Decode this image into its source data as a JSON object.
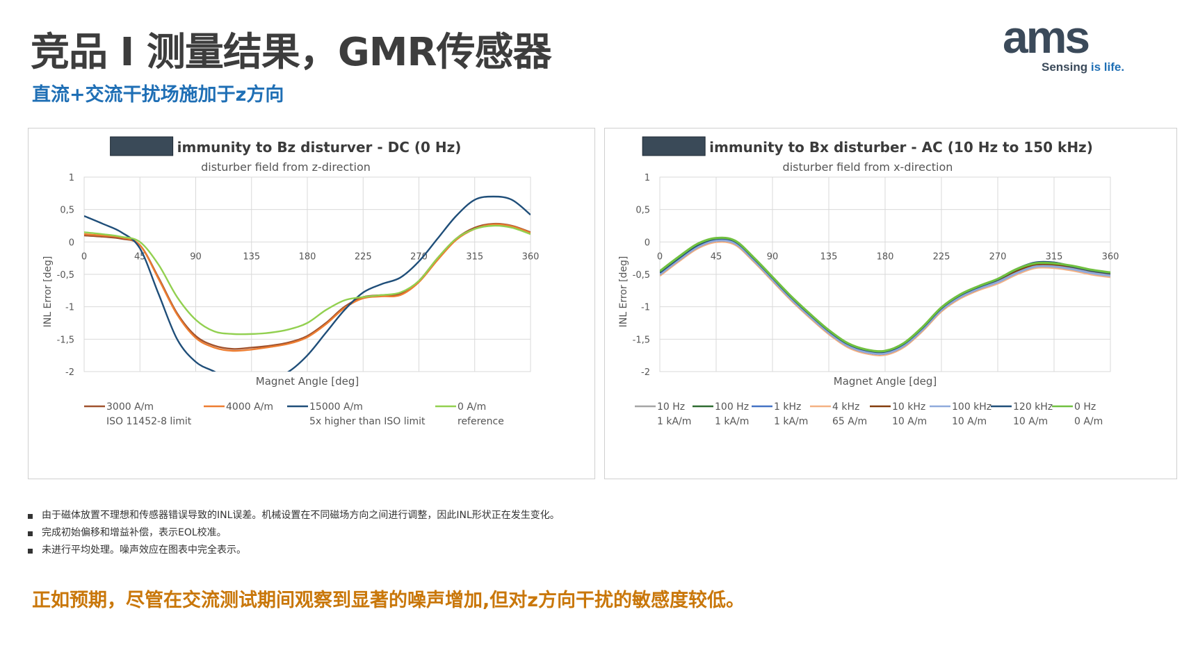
{
  "header": {
    "title": "竞品 I 测量结果，GMR传感器",
    "subtitle": "直流+交流干扰场施加于z方向"
  },
  "logo": {
    "wordmark": "ams",
    "tagline_1": "Sensing ",
    "tagline_2": "is life.",
    "color": "#3b4a5a",
    "accent": "#1f6fb5"
  },
  "bullets": [
    "由于磁体放置不理想和传感器错误导致的INL误差。机械设置在不同磁场方向之间进行调整，因此INL形状正在发生变化。",
    "完成初始偏移和增益补偿，表示EOL校准。",
    "未进行平均处理。噪声效应在图表中完全表示。"
  ],
  "conclusion": "正如预期，尽管在交流测试期间观察到显著的噪声增加,但对z方向干扰的敏感度较低。",
  "chart_data": [
    {
      "type": "line",
      "title": "immunity to Bz disturver - DC (0 Hz)",
      "subtitle": "disturber field from z-direction",
      "xlabel": "Magnet Angle [deg]",
      "ylabel": "INL Error [deg]",
      "xlim": [
        0,
        360
      ],
      "ylim": [
        -2,
        1
      ],
      "xticks": [
        "0",
        "45",
        "90",
        "135",
        "180",
        "225",
        "270",
        "315",
        "360"
      ],
      "yticks": [
        "1",
        "0,5",
        "0",
        "-0,5",
        "-1",
        "-1,5",
        "-2"
      ],
      "grid": true,
      "legend_position": "bottom",
      "x": [
        0,
        15,
        30,
        45,
        60,
        75,
        90,
        105,
        120,
        135,
        150,
        165,
        180,
        195,
        210,
        225,
        240,
        255,
        270,
        285,
        300,
        315,
        330,
        345,
        360
      ],
      "series": [
        {
          "name": "3000 A/m",
          "note": "ISO 11452-8 limit",
          "color": "#a0522d",
          "values": [
            0.1,
            0.08,
            0.05,
            -0.05,
            -0.55,
            -1.1,
            -1.45,
            -1.6,
            -1.65,
            -1.63,
            -1.6,
            -1.55,
            -1.45,
            -1.25,
            -1.0,
            -0.85,
            -0.82,
            -0.8,
            -0.6,
            -0.25,
            0.05,
            0.22,
            0.28,
            0.25,
            0.15
          ]
        },
        {
          "name": "4000 A/m",
          "note": "",
          "color": "#ed7d31",
          "values": [
            0.12,
            0.1,
            0.07,
            -0.05,
            -0.57,
            -1.12,
            -1.48,
            -1.63,
            -1.68,
            -1.66,
            -1.62,
            -1.57,
            -1.47,
            -1.27,
            -1.02,
            -0.87,
            -0.84,
            -0.82,
            -0.62,
            -0.28,
            0.03,
            0.2,
            0.27,
            0.24,
            0.14
          ]
        },
        {
          "name": "15000 A/m",
          "note": "5x higher than ISO limit",
          "color": "#1f4e79",
          "values": [
            0.4,
            0.28,
            0.15,
            -0.1,
            -0.8,
            -1.5,
            -1.85,
            -2.0,
            -2.15,
            -2.18,
            -2.12,
            -2.0,
            -1.75,
            -1.4,
            -1.05,
            -0.78,
            -0.65,
            -0.55,
            -0.3,
            0.05,
            0.4,
            0.65,
            0.7,
            0.65,
            0.42
          ]
        },
        {
          "name": "0 A/m",
          "note": "reference",
          "color": "#92d050",
          "values": [
            0.15,
            0.12,
            0.08,
            0.0,
            -0.35,
            -0.85,
            -1.2,
            -1.38,
            -1.42,
            -1.42,
            -1.4,
            -1.35,
            -1.25,
            -1.05,
            -0.9,
            -0.85,
            -0.82,
            -0.78,
            -0.6,
            -0.25,
            0.05,
            0.2,
            0.25,
            0.22,
            0.12
          ]
        }
      ]
    },
    {
      "type": "line",
      "title": "immunity to Bx disturber - AC (10 Hz to 150 kHz)",
      "subtitle": "disturber field from x-direction",
      "xlabel": "Magnet Angle [deg]",
      "ylabel": "INL Error [deg]",
      "xlim": [
        0,
        360
      ],
      "ylim": [
        -2,
        1
      ],
      "xticks": [
        "0",
        "45",
        "90",
        "135",
        "180",
        "225",
        "270",
        "315",
        "360"
      ],
      "yticks": [
        "1",
        "0,5",
        "0",
        "-0,5",
        "-1",
        "-1,5",
        "-2"
      ],
      "grid": true,
      "legend_position": "bottom",
      "x": [
        0,
        15,
        30,
        45,
        60,
        75,
        90,
        105,
        120,
        135,
        150,
        165,
        180,
        195,
        210,
        225,
        240,
        255,
        270,
        285,
        300,
        315,
        330,
        345,
        360
      ],
      "series": [
        {
          "name": "10 Hz",
          "note": "1 kA/m",
          "color": "#a5a5a5",
          "values": [
            -0.5,
            -0.28,
            -0.08,
            0.02,
            -0.02,
            -0.28,
            -0.58,
            -0.88,
            -1.15,
            -1.4,
            -1.6,
            -1.7,
            -1.72,
            -1.6,
            -1.35,
            -1.05,
            -0.85,
            -0.72,
            -0.62,
            -0.48,
            -0.38,
            -0.38,
            -0.42,
            -0.48,
            -0.52
          ]
        },
        {
          "name": "100 Hz",
          "note": "1 kA/m",
          "color": "#2e6b30",
          "values": [
            -0.49,
            -0.27,
            -0.07,
            0.03,
            -0.01,
            -0.27,
            -0.57,
            -0.87,
            -1.14,
            -1.39,
            -1.59,
            -1.69,
            -1.71,
            -1.59,
            -1.34,
            -1.04,
            -0.84,
            -0.71,
            -0.6,
            -0.45,
            -0.35,
            -0.35,
            -0.4,
            -0.46,
            -0.5
          ]
        },
        {
          "name": "1 kHz",
          "note": "1 kA/m",
          "color": "#4472c4",
          "values": [
            -0.51,
            -0.29,
            -0.09,
            0.01,
            -0.03,
            -0.29,
            -0.59,
            -0.89,
            -1.16,
            -1.41,
            -1.61,
            -1.71,
            -1.73,
            -1.61,
            -1.36,
            -1.06,
            -0.86,
            -0.73,
            -0.63,
            -0.49,
            -0.39,
            -0.39,
            -0.43,
            -0.49,
            -0.53
          ]
        },
        {
          "name": "4 kHz",
          "note": "65 A/m",
          "color": "#f4b183",
          "values": [
            -0.52,
            -0.3,
            -0.1,
            0.0,
            -0.04,
            -0.3,
            -0.6,
            -0.9,
            -1.17,
            -1.42,
            -1.62,
            -1.72,
            -1.74,
            -1.62,
            -1.37,
            -1.07,
            -0.87,
            -0.74,
            -0.64,
            -0.5,
            -0.4,
            -0.4,
            -0.44,
            -0.5,
            -0.54
          ]
        },
        {
          "name": "10 kHz",
          "note": "10 A/m",
          "color": "#843c0c",
          "values": [
            -0.5,
            -0.28,
            -0.08,
            0.02,
            -0.02,
            -0.28,
            -0.58,
            -0.88,
            -1.15,
            -1.4,
            -1.6,
            -1.7,
            -1.72,
            -1.6,
            -1.35,
            -1.05,
            -0.85,
            -0.72,
            -0.61,
            -0.46,
            -0.36,
            -0.36,
            -0.41,
            -0.47,
            -0.51
          ]
        },
        {
          "name": "100 kHz",
          "note": "10 A/m",
          "color": "#8faadc",
          "values": [
            -0.5,
            -0.28,
            -0.08,
            0.02,
            -0.02,
            -0.28,
            -0.58,
            -0.88,
            -1.15,
            -1.4,
            -1.6,
            -1.7,
            -1.72,
            -1.6,
            -1.35,
            -1.05,
            -0.85,
            -0.72,
            -0.62,
            -0.48,
            -0.38,
            -0.38,
            -0.42,
            -0.48,
            -0.52
          ]
        },
        {
          "name": "120 kHz",
          "note": "10 A/m",
          "color": "#1f4e79",
          "values": [
            -0.47,
            -0.25,
            -0.05,
            0.05,
            0.01,
            -0.25,
            -0.55,
            -0.85,
            -1.12,
            -1.37,
            -1.57,
            -1.67,
            -1.69,
            -1.57,
            -1.32,
            -1.02,
            -0.82,
            -0.69,
            -0.58,
            -0.42,
            -0.32,
            -0.32,
            -0.38,
            -0.44,
            -0.48
          ]
        },
        {
          "name": "0 Hz",
          "note": "0 A/m",
          "color": "#70c040",
          "values": [
            -0.45,
            -0.23,
            -0.03,
            0.06,
            0.02,
            -0.24,
            -0.54,
            -0.84,
            -1.11,
            -1.36,
            -1.56,
            -1.66,
            -1.68,
            -1.56,
            -1.31,
            -1.01,
            -0.81,
            -0.68,
            -0.57,
            -0.42,
            -0.33,
            -0.33,
            -0.37,
            -0.43,
            -0.47
          ]
        }
      ]
    }
  ]
}
